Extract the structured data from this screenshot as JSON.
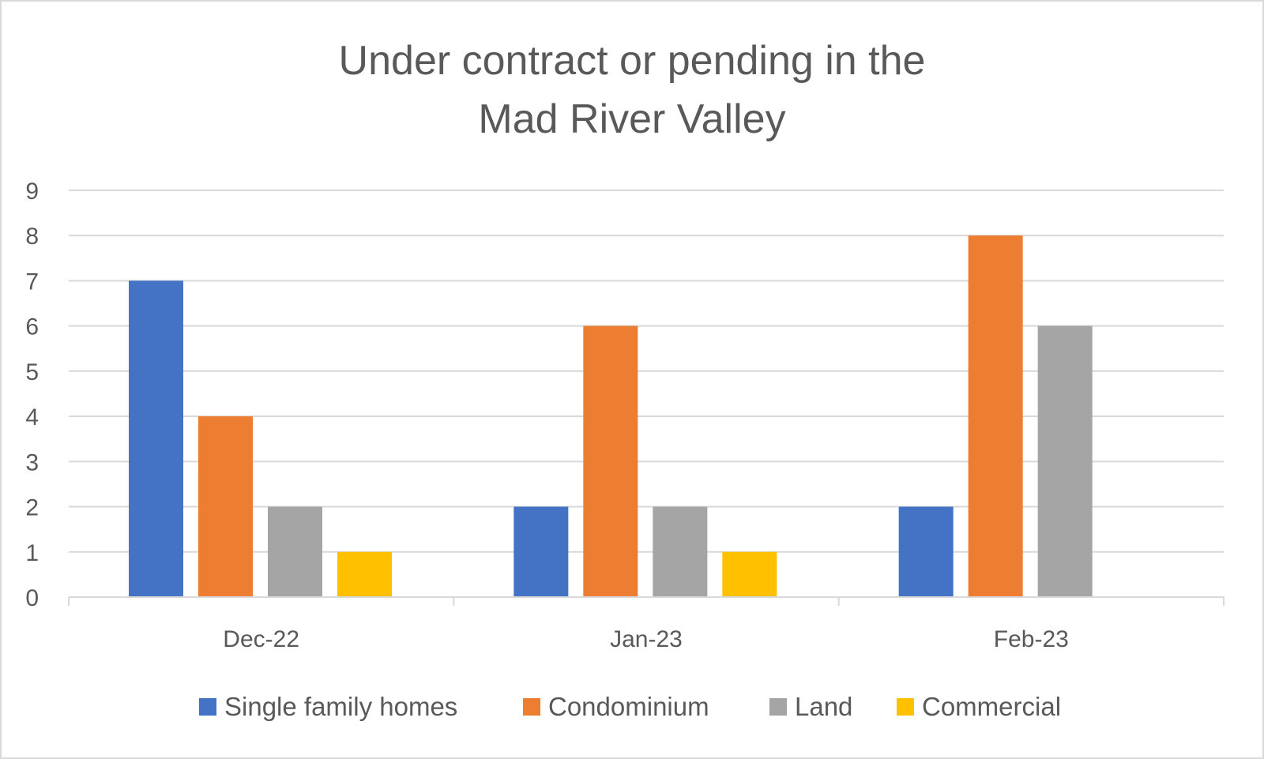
{
  "chart_data": {
    "type": "bar",
    "title_lines": [
      "Under contract or pending in the",
      "Mad River Valley"
    ],
    "categories": [
      "Dec-22",
      "Jan-23",
      "Feb-23"
    ],
    "series": [
      {
        "name": "Single family homes",
        "color": "#4472c4",
        "values": [
          7,
          2,
          2
        ]
      },
      {
        "name": "Condominium",
        "color": "#ed7d31",
        "values": [
          4,
          6,
          8
        ]
      },
      {
        "name": "Land",
        "color": "#a5a5a5",
        "values": [
          2,
          2,
          6
        ]
      },
      {
        "name": "Commercial",
        "color": "#ffc000",
        "values": [
          1,
          1,
          null
        ]
      }
    ],
    "ylim": [
      0,
      9
    ],
    "yticks": [
      "0",
      "1",
      "2",
      "3",
      "4",
      "5",
      "6",
      "7",
      "8",
      "9"
    ],
    "grid": true,
    "legend_position": "bottom"
  }
}
